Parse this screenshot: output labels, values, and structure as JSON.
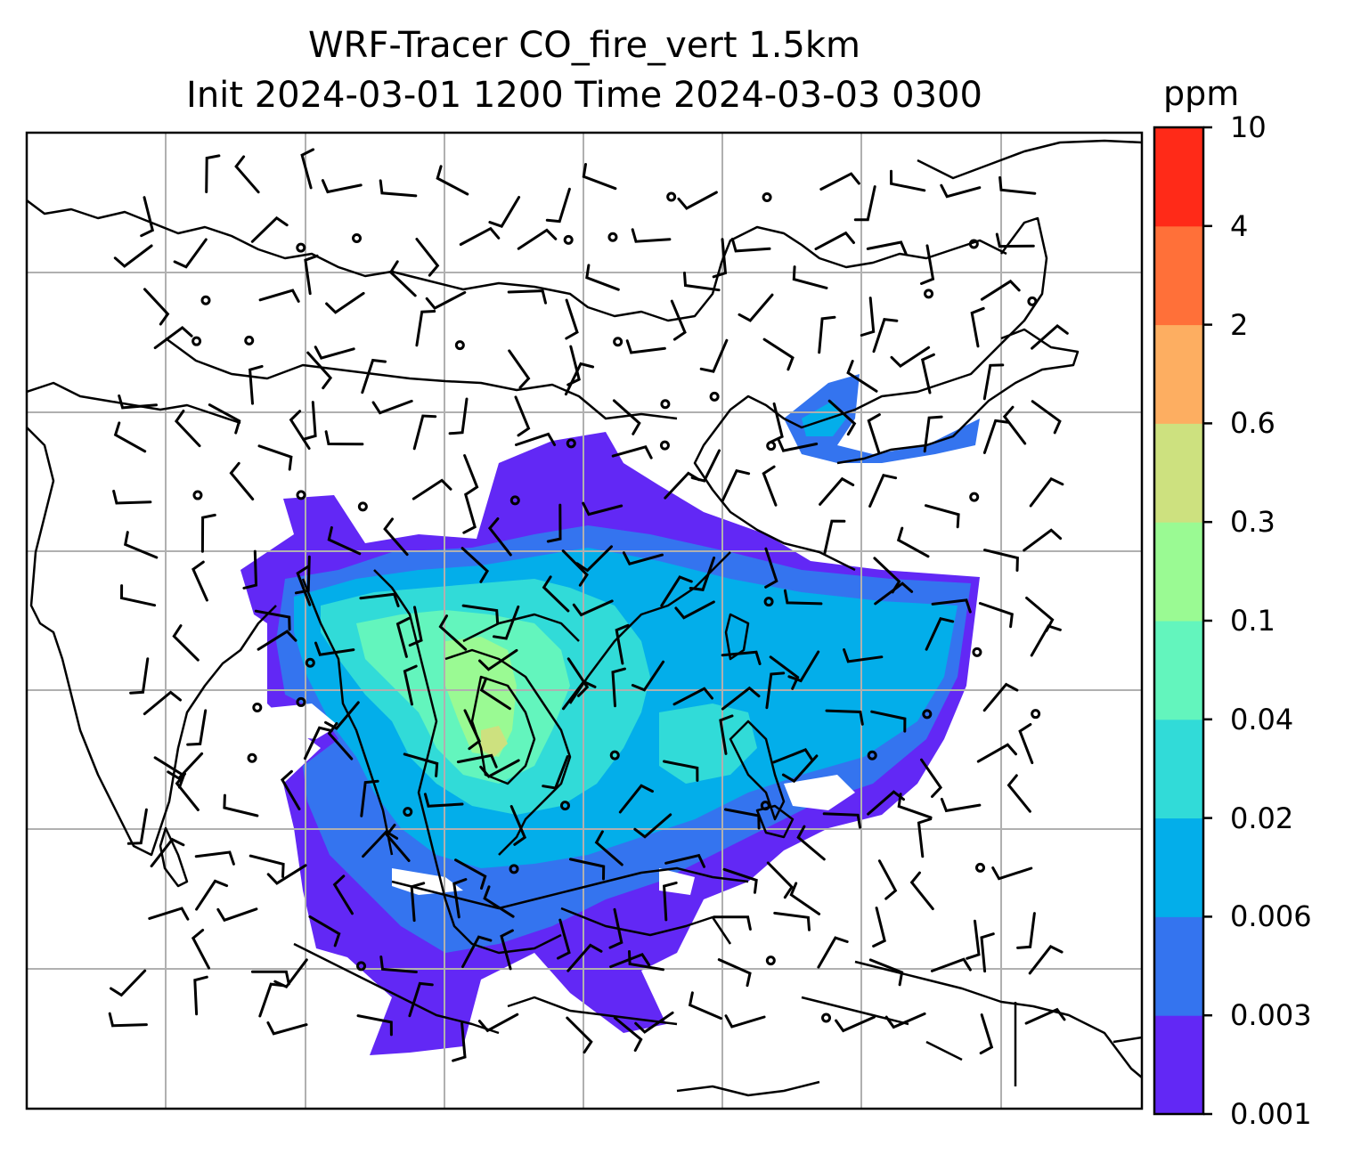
{
  "title": {
    "line1": "WRF-Tracer CO_fire_vert 1.5km",
    "line2": "Init 2024-03-01 1200 Time 2024-03-03 0300"
  },
  "colorbar": {
    "unit": "ppm",
    "levels": [
      "0.001",
      "0.003",
      "0.006",
      "0.02",
      "0.04",
      "0.1",
      "0.3",
      "0.6",
      "2",
      "4",
      "10"
    ],
    "colors": [
      "#6228f5",
      "#3474ef",
      "#03aeea",
      "#31dbd8",
      "#63f5bd",
      "#9afa93",
      "#cde17f",
      "#fdae61",
      "#ff7039",
      "#ff2a18"
    ]
  },
  "map": {
    "field": "CO_fire_vert",
    "gridlines": true,
    "grid_color": "#b0b0b0",
    "coastline_color": "#000000"
  }
}
